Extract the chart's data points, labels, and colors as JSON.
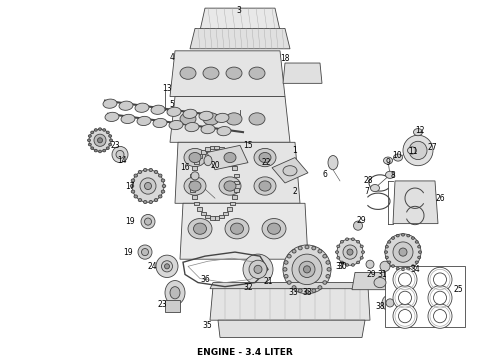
{
  "title": "ENGINE - 3.4 LITER",
  "title_fontsize": 6.5,
  "title_fontweight": "bold",
  "bg_color": "#ffffff",
  "fig_width": 4.9,
  "fig_height": 3.6,
  "dpi": 100,
  "lc": "#d8d8d8",
  "ec": "#444444",
  "lw": 0.6
}
